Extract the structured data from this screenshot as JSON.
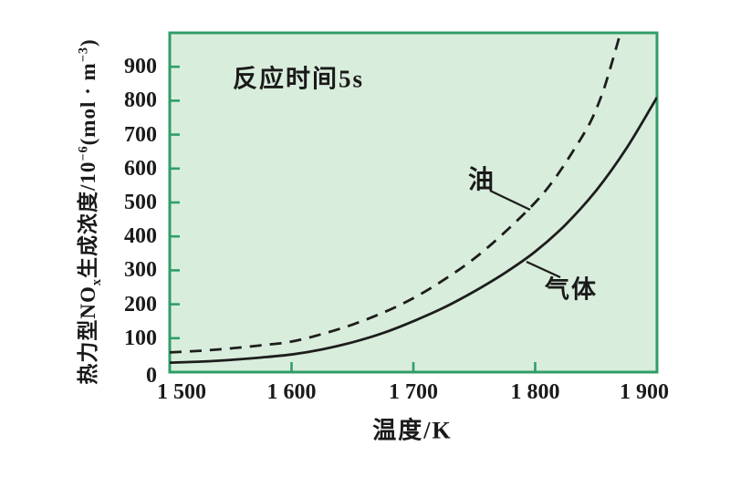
{
  "colors": {
    "plot_bg": "#d9eddc",
    "axis_green": "#2f9e68",
    "curve": "#1d1d1d",
    "text": "#1a1a1a",
    "page_bg": "#ffffff"
  },
  "chart_data": {
    "type": "line",
    "title": "",
    "annotation": "反应时间5s",
    "xlabel": "温度/K",
    "ylabel": "热力型NOₓ生成浓度/10⁻⁶(mol·m⁻³)",
    "ylabel_parts": {
      "p1": "热力型NO",
      "sub1": "x",
      "p2": "生成浓度/10",
      "sup1": "−6",
      "p3": "(mol · m",
      "sup2": "−3",
      "p4": ")"
    },
    "xlim": [
      1500,
      1900
    ],
    "ylim": [
      0,
      1000
    ],
    "grid": false,
    "legend_position": "inline-annotations",
    "x_ticks": [
      {
        "value": 1500,
        "label": "1 500",
        "mark": false
      },
      {
        "value": 1600,
        "label": "1 600",
        "mark": true
      },
      {
        "value": 1700,
        "label": "1 700",
        "mark": true
      },
      {
        "value": 1800,
        "label": "1 800",
        "mark": true
      },
      {
        "value": 1900,
        "label": "1 900",
        "mark": false
      }
    ],
    "y_ticks": [
      {
        "value": 0,
        "label": "0",
        "mark": false
      },
      {
        "value": 100,
        "label": "100",
        "mark": true
      },
      {
        "value": 200,
        "label": "200",
        "mark": true
      },
      {
        "value": 300,
        "label": "300",
        "mark": true
      },
      {
        "value": 400,
        "label": "400",
        "mark": true
      },
      {
        "value": 500,
        "label": "500",
        "mark": true
      },
      {
        "value": 600,
        "label": "600",
        "mark": true
      },
      {
        "value": 700,
        "label": "700",
        "mark": true
      },
      {
        "value": 800,
        "label": "800",
        "mark": true
      },
      {
        "value": 900,
        "label": "900",
        "mark": true
      }
    ],
    "series": [
      {
        "name": "油",
        "style": "dashed",
        "points": [
          [
            1500,
            58
          ],
          [
            1525,
            63
          ],
          [
            1550,
            70
          ],
          [
            1575,
            79
          ],
          [
            1600,
            90
          ],
          [
            1625,
            112
          ],
          [
            1650,
            140
          ],
          [
            1675,
            175
          ],
          [
            1700,
            218
          ],
          [
            1725,
            272
          ],
          [
            1750,
            335
          ],
          [
            1775,
            412
          ],
          [
            1800,
            500
          ],
          [
            1815,
            565
          ],
          [
            1830,
            645
          ],
          [
            1845,
            735
          ],
          [
            1855,
            820
          ],
          [
            1862,
            900
          ],
          [
            1870,
            1000
          ]
        ]
      },
      {
        "name": "气体",
        "style": "solid",
        "points": [
          [
            1500,
            28
          ],
          [
            1525,
            31
          ],
          [
            1550,
            36
          ],
          [
            1575,
            43
          ],
          [
            1600,
            52
          ],
          [
            1625,
            67
          ],
          [
            1650,
            88
          ],
          [
            1675,
            115
          ],
          [
            1700,
            150
          ],
          [
            1725,
            190
          ],
          [
            1750,
            238
          ],
          [
            1775,
            292
          ],
          [
            1800,
            355
          ],
          [
            1825,
            435
          ],
          [
            1850,
            535
          ],
          [
            1875,
            660
          ],
          [
            1900,
            810
          ]
        ]
      }
    ]
  }
}
